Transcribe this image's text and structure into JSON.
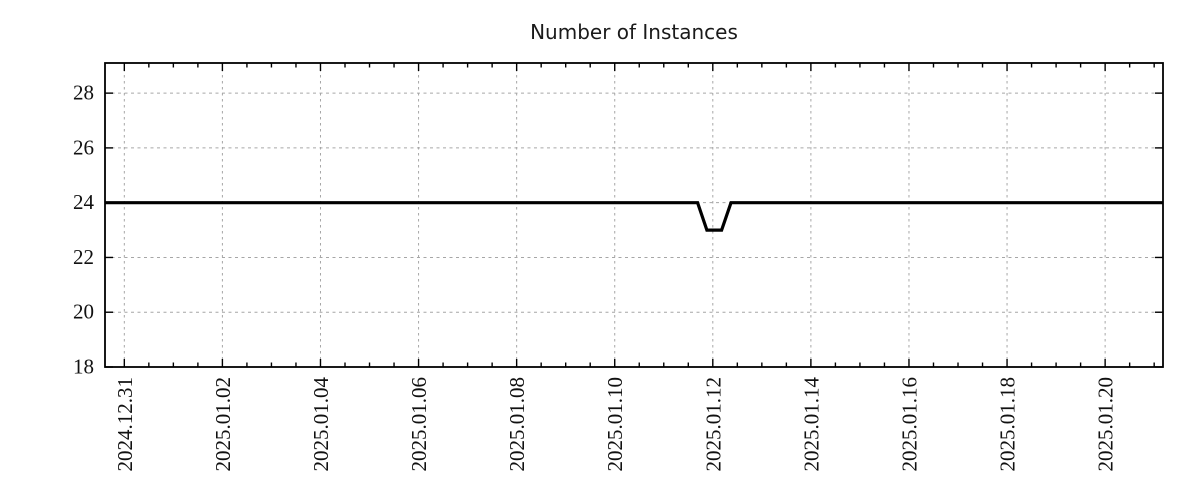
{
  "chart_data": {
    "type": "line",
    "title": "Number of Instances",
    "xlabel": "",
    "ylabel": "",
    "legend": "none",
    "grid": "dotted gray lines at major ticks on both axes",
    "x_axis": {
      "origin": "2024-12-31 00:00",
      "unit": "days since origin",
      "lim": [
        -0.394,
        21.18
      ],
      "major_tick_step_days": 2,
      "minor_tick_step_days": 0.5,
      "ticks": [
        {
          "pos": 0,
          "label": "2024.12.31"
        },
        {
          "pos": 2,
          "label": "2025.01.02"
        },
        {
          "pos": 4,
          "label": "2025.01.04"
        },
        {
          "pos": 6,
          "label": "2025.01.06"
        },
        {
          "pos": 8,
          "label": "2025.01.08"
        },
        {
          "pos": 10,
          "label": "2025.01.10"
        },
        {
          "pos": 12,
          "label": "2025.01.12"
        },
        {
          "pos": 14,
          "label": "2025.01.14"
        },
        {
          "pos": 16,
          "label": "2025.01.16"
        },
        {
          "pos": 18,
          "label": "2025.01.18"
        },
        {
          "pos": 20,
          "label": "2025.01.20"
        }
      ]
    },
    "y_axis": {
      "lim": [
        18,
        29.1
      ],
      "ticks": [
        {
          "pos": 18,
          "label": "18"
        },
        {
          "pos": 20,
          "label": "20"
        },
        {
          "pos": 22,
          "label": "22"
        },
        {
          "pos": 24,
          "label": "24"
        },
        {
          "pos": 26,
          "label": "26"
        },
        {
          "pos": 28,
          "label": "28"
        }
      ]
    },
    "series": [
      {
        "name": "instances",
        "color": "#000000",
        "line_width": 3.2,
        "points": [
          {
            "t": -0.394,
            "date": "2024-12-30 14:30",
            "value": 24
          },
          {
            "t": 11.69,
            "date": "2025-01-11 16:30",
            "value": 24
          },
          {
            "t": 11.88,
            "date": "2025-01-11 21:00",
            "value": 23
          },
          {
            "t": 12.18,
            "date": "2025-01-12 04:30",
            "value": 23
          },
          {
            "t": 12.37,
            "date": "2025-01-12 09:00",
            "value": 24
          },
          {
            "t": 21.18,
            "date": "2025-01-21 04:00",
            "value": 24
          }
        ]
      }
    ],
    "colors": {
      "line": "#000000",
      "grid": "#a6a6a6",
      "axis": "#000000",
      "text": "#111111",
      "background": "#ffffff"
    }
  }
}
